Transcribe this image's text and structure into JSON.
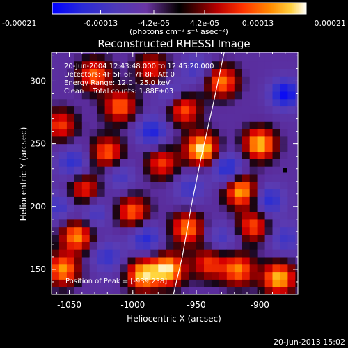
{
  "chart_data": {
    "type": "heatmap",
    "title": "Reconstructed RHESSI Image",
    "xlabel": "Heliocentric X (arcsec)",
    "ylabel": "Heliocentric Y (arcsec)",
    "xlim": [
      -1064,
      -870
    ],
    "ylim": [
      130,
      323
    ],
    "x_ticks": [
      -1050,
      -1000,
      -950,
      -900
    ],
    "x_tick_labels": [
      "-1050",
      "-1000",
      "-950",
      "-900"
    ],
    "y_ticks": [
      150,
      200,
      250,
      300
    ],
    "y_tick_labels": [
      "150",
      "200",
      "250",
      "300"
    ],
    "colorbar": {
      "range": [
        -0.00021,
        0.00021
      ],
      "ticks": [
        -0.00021,
        -0.00013,
        -4.2e-05,
        4.2e-05,
        0.00013,
        0.00021
      ],
      "tick_labels": [
        "-0.00021",
        "-0.00013",
        "-4.2e-05",
        "4.2e-05",
        "0.00013",
        "0.00021"
      ],
      "unit_label": "(photons cm⁻² s⁻¹ asec⁻²)"
    },
    "annotations": [
      "20-Jun-2004 12:43:48.000 to 12:45:20.000",
      "Detectors: 4F 5F 6F 7F 8F, Att 0",
      "Energy Range: 12.0 - 25.0 keV",
      "Clean    Total counts: 1.88E+03"
    ],
    "peak_label": "Position of Peak = [-939,238]",
    "peak": [
      -939,
      238
    ],
    "limb_curve": [
      [
        -968,
        130
      ],
      [
        -961,
        160
      ],
      [
        -954,
        200
      ],
      [
        -946,
        240
      ],
      [
        -937,
        280
      ],
      [
        -928,
        323
      ]
    ],
    "marker": [
      -880,
      229
    ],
    "hot_sources": [
      {
        "x": -946,
        "y": 246,
        "a": 1.0
      },
      {
        "x": -972,
        "y": 150,
        "a": 0.95
      },
      {
        "x": -992,
        "y": 146,
        "a": 0.9
      },
      {
        "x": -900,
        "y": 250,
        "a": 0.9
      },
      {
        "x": -915,
        "y": 213,
        "a": 0.9
      },
      {
        "x": -885,
        "y": 143,
        "a": 0.9
      },
      {
        "x": -1044,
        "y": 177,
        "a": 0.8
      },
      {
        "x": -1055,
        "y": 150,
        "a": 0.8
      },
      {
        "x": -1010,
        "y": 280,
        "a": 0.7
      },
      {
        "x": -1020,
        "y": 243,
        "a": 0.7
      },
      {
        "x": -960,
        "y": 278,
        "a": 0.7
      },
      {
        "x": -957,
        "y": 183,
        "a": 0.75
      },
      {
        "x": -1000,
        "y": 196,
        "a": 0.7
      },
      {
        "x": -1038,
        "y": 214,
        "a": 0.6
      },
      {
        "x": -930,
        "y": 300,
        "a": 0.75
      },
      {
        "x": -917,
        "y": 150,
        "a": 0.75
      },
      {
        "x": -1030,
        "y": 305,
        "a": 0.7
      },
      {
        "x": -977,
        "y": 235,
        "a": 0.6
      },
      {
        "x": -905,
        "y": 185,
        "a": 0.65
      },
      {
        "x": -1057,
        "y": 265,
        "a": 0.6
      },
      {
        "x": -985,
        "y": 310,
        "a": 0.55
      },
      {
        "x": -940,
        "y": 155,
        "a": 0.6
      }
    ],
    "cold_sources": [
      {
        "x": -880,
        "y": 290,
        "a": 0.95
      },
      {
        "x": -1047,
        "y": 235,
        "a": 0.7
      },
      {
        "x": -985,
        "y": 260,
        "a": 0.8
      },
      {
        "x": -990,
        "y": 175,
        "a": 0.75
      },
      {
        "x": -925,
        "y": 230,
        "a": 0.85
      },
      {
        "x": -955,
        "y": 215,
        "a": 0.55
      },
      {
        "x": -1020,
        "y": 160,
        "a": 0.6
      },
      {
        "x": -893,
        "y": 205,
        "a": 0.75
      },
      {
        "x": -1030,
        "y": 195,
        "a": 0.55
      },
      {
        "x": -950,
        "y": 310,
        "a": 0.5
      },
      {
        "x": -1058,
        "y": 200,
        "a": 0.55
      },
      {
        "x": -930,
        "y": 175,
        "a": 0.5
      },
      {
        "x": -970,
        "y": 290,
        "a": 0.5
      },
      {
        "x": -1010,
        "y": 225,
        "a": 0.5
      },
      {
        "x": -880,
        "y": 175,
        "a": 0.55
      }
    ]
  },
  "footer": {
    "timestamp": "20-Jun-2013 15:02"
  }
}
